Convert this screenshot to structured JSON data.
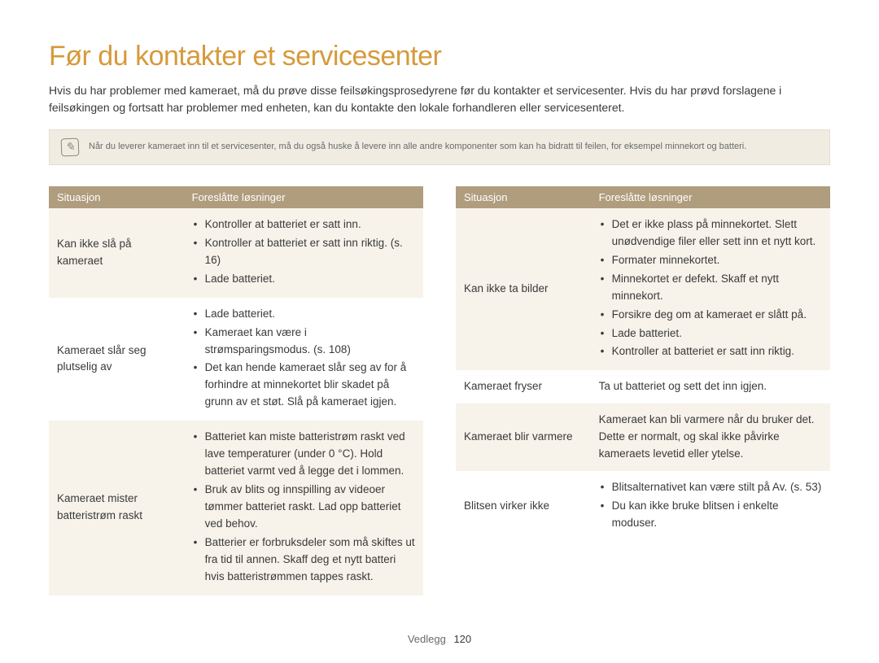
{
  "title": "Før du kontakter et servicesenter",
  "intro": "Hvis du har problemer med kameraet, må du prøve disse feilsøkingsprosedyrene før du kontakter et servicesenter. Hvis du har prøvd forslagene i feilsøkingen og fortsatt har problemer med enheten, kan du kontakte den lokale forhandleren eller servicesenteret.",
  "note": "Når du leverer kameraet inn til et servicesenter, må du også huske å levere inn alle andre komponenter som kan ha bidratt til feilen, for eksempel minnekort og batteri.",
  "headers": {
    "situation": "Situasjon",
    "solutions": "Foreslåtte løsninger"
  },
  "left_rows": [
    {
      "alt": true,
      "situation": "Kan ikke slå på kameraet",
      "type": "list",
      "items": [
        "Kontroller at batteriet er satt inn.",
        "Kontroller at batteriet er satt inn riktig. (s. 16)",
        "Lade batteriet."
      ]
    },
    {
      "alt": false,
      "situation": "Kameraet slår seg plutselig av",
      "type": "list",
      "items": [
        "Lade batteriet.",
        "Kameraet kan være i strømsparingsmodus. (s. 108)",
        "Det kan hende kameraet slår seg av for å forhindre at minnekortet blir skadet på grunn av et støt. Slå på kameraet igjen."
      ]
    },
    {
      "alt": true,
      "situation": "Kameraet mister batteristrøm raskt",
      "type": "list",
      "items": [
        "Batteriet kan miste batteristrøm raskt ved lave temperaturer (under 0 °C). Hold batteriet varmt ved å legge det i lommen.",
        "Bruk av blits og innspilling av videoer tømmer batteriet raskt. Lad opp batteriet ved behov.",
        "Batterier er forbruksdeler som må skiftes ut fra tid til annen. Skaff deg et nytt batteri hvis batteristrømmen tappes raskt."
      ]
    }
  ],
  "right_rows": [
    {
      "alt": true,
      "situation": "Kan ikke ta bilder",
      "type": "list",
      "items": [
        "Det er ikke plass på minnekortet. Slett unødvendige filer eller sett inn et nytt kort.",
        "Formater minnekortet.",
        "Minnekortet er defekt. Skaff et nytt minnekort.",
        "Forsikre deg om at kameraet er slått på.",
        "Lade batteriet.",
        "Kontroller at batteriet er satt inn riktig."
      ]
    },
    {
      "alt": false,
      "situation": "Kameraet fryser",
      "type": "text",
      "text": "Ta ut batteriet og sett det inn igjen."
    },
    {
      "alt": true,
      "situation": "Kameraet blir varmere",
      "type": "text",
      "text": "Kameraet kan bli varmere når du bruker det. Dette er normalt, og skal ikke påvirke kameraets levetid eller ytelse."
    },
    {
      "alt": false,
      "situation": "Blitsen virker ikke",
      "type": "list",
      "items": [
        "Blitsalternativet kan være stilt på Av. (s. 53)",
        "Du kan ikke bruke blitsen i enkelte moduser."
      ]
    }
  ],
  "footer": {
    "section": "Vedlegg",
    "page": "120"
  },
  "colors": {
    "title": "#d69a3a",
    "header_bg": "#b09d7e",
    "note_bg": "#f0ece2",
    "alt_row_bg": "#f7f3ea",
    "text": "#3a3a3a",
    "muted": "#6a6a6a"
  }
}
